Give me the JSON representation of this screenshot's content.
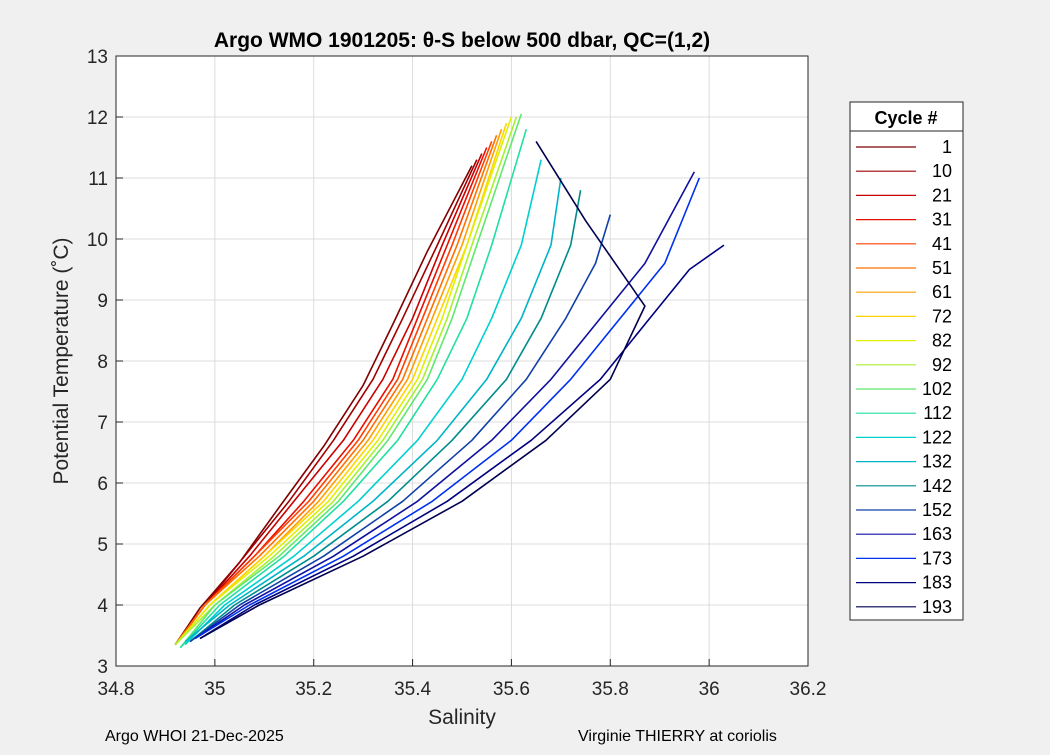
{
  "chart_data": {
    "type": "line",
    "title": "Argo WMO 1901205: θ-S below 500 dbar,  QC=(1,2)",
    "xlabel": "Salinity",
    "ylabel": "Potential Temperature (˚C)",
    "xlim": [
      34.8,
      36.2
    ],
    "ylim": [
      3,
      13
    ],
    "x_ticks": [
      "34.8",
      "35",
      "35.2",
      "35.4",
      "35.6",
      "35.8",
      "36",
      "36.2"
    ],
    "y_ticks": [
      "3",
      "4",
      "5",
      "6",
      "7",
      "8",
      "9",
      "10",
      "11",
      "12",
      "13"
    ],
    "grid": true,
    "legend_position": "right",
    "legend_title": "Cycle #",
    "series": [
      {
        "name": "1",
        "color": "#800000",
        "x": [
          34.92,
          34.97,
          35.05,
          35.13,
          35.22,
          35.3,
          35.36,
          35.43,
          35.52
        ],
        "y": [
          3.35,
          3.95,
          4.7,
          5.6,
          6.6,
          7.6,
          8.6,
          9.8,
          11.2
        ]
      },
      {
        "name": "10",
        "color": "#a00000",
        "x": [
          34.92,
          34.98,
          35.06,
          35.15,
          35.24,
          35.32,
          35.38,
          35.45,
          35.53
        ],
        "y": [
          3.35,
          4.0,
          4.8,
          5.7,
          6.7,
          7.7,
          8.7,
          9.9,
          11.3
        ]
      },
      {
        "name": "21",
        "color": "#c80000",
        "x": [
          34.92,
          34.98,
          35.07,
          35.16,
          35.26,
          35.34,
          35.4,
          35.46,
          35.54
        ],
        "y": [
          3.35,
          4.0,
          4.8,
          5.7,
          6.7,
          7.7,
          8.7,
          9.9,
          11.4
        ]
      },
      {
        "name": "31",
        "color": "#e81000",
        "x": [
          34.92,
          34.98,
          35.08,
          35.18,
          35.28,
          35.36,
          35.41,
          35.47,
          35.55
        ],
        "y": [
          3.35,
          4.0,
          4.8,
          5.7,
          6.7,
          7.7,
          8.7,
          9.9,
          11.5
        ]
      },
      {
        "name": "41",
        "color": "#ff4000",
        "x": [
          34.92,
          34.98,
          35.08,
          35.19,
          35.29,
          35.37,
          35.42,
          35.48,
          35.56
        ],
        "y": [
          3.35,
          4.0,
          4.8,
          5.7,
          6.7,
          7.7,
          8.7,
          9.9,
          11.6
        ]
      },
      {
        "name": "51",
        "color": "#ff7000",
        "x": [
          34.92,
          34.98,
          35.09,
          35.2,
          35.3,
          35.38,
          35.43,
          35.49,
          35.57
        ],
        "y": [
          3.35,
          4.0,
          4.8,
          5.7,
          6.7,
          7.7,
          8.7,
          9.9,
          11.7
        ]
      },
      {
        "name": "61",
        "color": "#ffa000",
        "x": [
          34.92,
          34.99,
          35.1,
          35.21,
          35.31,
          35.39,
          35.44,
          35.5,
          35.58
        ],
        "y": [
          3.35,
          4.0,
          4.8,
          5.7,
          6.7,
          7.7,
          8.7,
          9.9,
          11.8
        ]
      },
      {
        "name": "72",
        "color": "#ffd400",
        "x": [
          34.92,
          34.99,
          35.1,
          35.22,
          35.32,
          35.4,
          35.45,
          35.51,
          35.59
        ],
        "y": [
          3.35,
          4.0,
          4.8,
          5.7,
          6.7,
          7.7,
          8.7,
          9.9,
          11.9
        ]
      },
      {
        "name": "82",
        "color": "#e0f000",
        "x": [
          34.92,
          34.99,
          35.11,
          35.23,
          35.33,
          35.41,
          35.46,
          35.51,
          35.6
        ],
        "y": [
          3.35,
          4.0,
          4.8,
          5.7,
          6.7,
          7.7,
          8.7,
          9.9,
          12.0
        ]
      },
      {
        "name": "92",
        "color": "#a8f030",
        "x": [
          34.92,
          35.0,
          35.12,
          35.24,
          35.34,
          35.42,
          35.47,
          35.52,
          35.61
        ],
        "y": [
          3.35,
          4.0,
          4.8,
          5.7,
          6.7,
          7.7,
          8.7,
          9.9,
          12.0
        ]
      },
      {
        "name": "102",
        "color": "#60e870",
        "x": [
          34.93,
          35.0,
          35.13,
          35.25,
          35.35,
          35.43,
          35.48,
          35.53,
          35.62
        ],
        "y": [
          3.3,
          4.0,
          4.8,
          5.7,
          6.7,
          7.7,
          8.7,
          9.9,
          12.05
        ]
      },
      {
        "name": "112",
        "color": "#20e0a0",
        "x": [
          34.93,
          35.01,
          35.14,
          35.26,
          35.37,
          35.45,
          35.51,
          35.56,
          35.63
        ],
        "y": [
          3.3,
          4.0,
          4.8,
          5.7,
          6.7,
          7.7,
          8.7,
          9.9,
          11.8
        ]
      },
      {
        "name": "122",
        "color": "#00d0d0",
        "x": [
          34.94,
          35.02,
          35.16,
          35.29,
          35.41,
          35.5,
          35.56,
          35.62,
          35.66
        ],
        "y": [
          3.35,
          4.0,
          4.8,
          5.7,
          6.7,
          7.7,
          8.7,
          9.9,
          11.3
        ]
      },
      {
        "name": "132",
        "color": "#00b4c8",
        "x": [
          34.94,
          35.03,
          35.18,
          35.32,
          35.45,
          35.55,
          35.62,
          35.68,
          35.7
        ],
        "y": [
          3.4,
          4.0,
          4.8,
          5.7,
          6.7,
          7.7,
          8.7,
          9.9,
          11.0
        ]
      },
      {
        "name": "142",
        "color": "#008c8c",
        "x": [
          34.95,
          35.04,
          35.2,
          35.35,
          35.48,
          35.59,
          35.66,
          35.72,
          35.74
        ],
        "y": [
          3.4,
          4.0,
          4.8,
          5.7,
          6.7,
          7.7,
          8.7,
          9.9,
          10.8
        ]
      },
      {
        "name": "152",
        "color": "#1040a8",
        "x": [
          34.95,
          35.05,
          35.22,
          35.38,
          35.52,
          35.63,
          35.71,
          35.77,
          35.8
        ],
        "y": [
          3.4,
          4.0,
          4.8,
          5.7,
          6.7,
          7.7,
          8.7,
          9.6,
          10.4
        ]
      },
      {
        "name": "163",
        "color": "#1010a0",
        "x": [
          34.96,
          35.06,
          35.24,
          35.41,
          35.56,
          35.68,
          35.78,
          35.87,
          35.97
        ],
        "y": [
          3.45,
          4.0,
          4.8,
          5.7,
          6.7,
          7.7,
          8.7,
          9.6,
          11.1
        ]
      },
      {
        "name": "173",
        "color": "#0030f0",
        "x": [
          34.96,
          35.07,
          35.26,
          35.44,
          35.6,
          35.72,
          35.82,
          35.91,
          35.98
        ],
        "y": [
          3.45,
          4.0,
          4.8,
          5.7,
          6.7,
          7.7,
          8.7,
          9.6,
          11.0
        ]
      },
      {
        "name": "183",
        "color": "#000080",
        "x": [
          34.97,
          35.08,
          35.28,
          35.47,
          35.64,
          35.78,
          35.88,
          35.96,
          36.03
        ],
        "y": [
          3.45,
          4.0,
          4.8,
          5.7,
          6.7,
          7.7,
          8.7,
          9.5,
          9.9
        ]
      },
      {
        "name": "193",
        "color": "#000050",
        "x": [
          34.97,
          35.09,
          35.3,
          35.5,
          35.67,
          35.8,
          35.87,
          35.75,
          35.65
        ],
        "y": [
          3.45,
          4.0,
          4.8,
          5.7,
          6.7,
          7.7,
          8.9,
          10.3,
          11.6
        ]
      }
    ]
  },
  "footer": {
    "left": "Argo WHOI 21-Dec-2025",
    "right": "Virginie THIERRY at coriolis"
  }
}
